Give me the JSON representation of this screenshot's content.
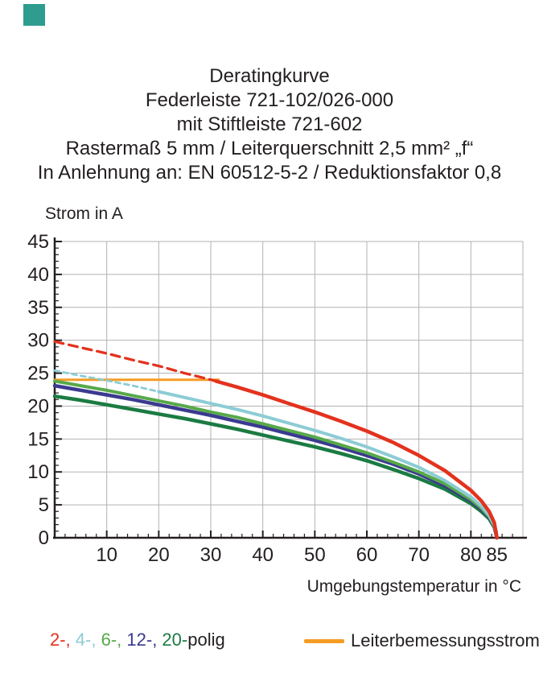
{
  "brand": {
    "square_color": "#2E9C8E"
  },
  "title": {
    "lines": [
      "Deratingkurve",
      "Federleiste 721-102/026-000",
      "mit Stiftleiste 721-602",
      "Rastermaß 5 mm / Leiterquerschnitt 2,5 mm² „f“",
      "In Anlehnung an: EN 60512-5-2 / Reduktionsfaktor 0,8"
    ]
  },
  "chart_data": {
    "type": "line",
    "title": "Deratingkurve",
    "xlabel": "Umgebungstemperatur in °C",
    "ylabel": "Strom in A",
    "xlim": [
      0,
      90
    ],
    "ylim": [
      0,
      45
    ],
    "x_major_ticks": [
      10,
      20,
      30,
      40,
      50,
      60,
      70,
      80,
      85
    ],
    "y_major_ticks": [
      0,
      5,
      10,
      15,
      20,
      25,
      30,
      35,
      40,
      45
    ],
    "x_minor_step": 2,
    "y_minor_step": 1,
    "grid": true,
    "grid_color": "#b2b2b2",
    "axis_color": "#231f20",
    "x": [
      0,
      5,
      10,
      15,
      20,
      25,
      30,
      35,
      40,
      45,
      50,
      55,
      60,
      65,
      70,
      75,
      80,
      82,
      83.5,
      84.5,
      85
    ],
    "series": [
      {
        "name": "2-polig",
        "color": "#E3321E",
        "width": 4.5,
        "dash_until_x": 31,
        "values": [
          29.8,
          28.9,
          28.0,
          27.0,
          26.1,
          25.0,
          24.0,
          22.9,
          21.7,
          20.4,
          19.1,
          17.7,
          16.2,
          14.5,
          12.5,
          10.2,
          7.2,
          5.6,
          4.0,
          2.3,
          0
        ]
      },
      {
        "name": "4-polig",
        "color": "#8CCCD5",
        "width": 4,
        "dash_until_x": 20,
        "values": [
          25.4,
          24.6,
          23.9,
          23.1,
          22.2,
          21.3,
          20.4,
          19.5,
          18.5,
          17.4,
          16.3,
          15.1,
          13.8,
          12.3,
          10.7,
          8.7,
          6.2,
          4.8,
          3.4,
          1.9,
          0
        ]
      },
      {
        "name": "6-polig",
        "color": "#57A949",
        "width": 4,
        "values": [
          23.8,
          23.1,
          22.4,
          21.6,
          20.8,
          20.0,
          19.1,
          18.3,
          17.3,
          16.3,
          15.3,
          14.1,
          12.9,
          11.5,
          10.0,
          8.2,
          5.8,
          4.5,
          3.2,
          1.8,
          0
        ]
      },
      {
        "name": "12-polig",
        "color": "#3A3A90",
        "width": 4.5,
        "values": [
          23.1,
          22.4,
          21.7,
          21.0,
          20.2,
          19.4,
          18.6,
          17.7,
          16.8,
          15.8,
          14.8,
          13.7,
          12.5,
          11.2,
          9.7,
          7.9,
          5.6,
          4.3,
          3.1,
          1.8,
          0
        ]
      },
      {
        "name": "20-polig",
        "color": "#1B7B42",
        "width": 4.5,
        "values": [
          21.5,
          20.9,
          20.2,
          19.5,
          18.8,
          18.1,
          17.3,
          16.5,
          15.6,
          14.7,
          13.8,
          12.8,
          11.7,
          10.4,
          9.0,
          7.4,
          5.2,
          4.0,
          2.9,
          1.6,
          0
        ]
      },
      {
        "name": "Leiterbemessungsstrom",
        "color": "#F59C23",
        "width": 3,
        "x": [
          0,
          31.5
        ],
        "values": [
          24,
          24
        ]
      }
    ]
  },
  "legend": {
    "poles": [
      {
        "label": "2-",
        "color": "#E3321E"
      },
      {
        "label": "4-",
        "color": "#8CCCD5"
      },
      {
        "label": "6-",
        "color": "#57A949"
      },
      {
        "label": "12-",
        "color": "#3A3A90"
      },
      {
        "label": "20-",
        "color": "#1B7B42"
      }
    ],
    "separator": ", ",
    "suffix": "polig",
    "suffix_color": "#231f20",
    "rated_current_label": "Leiterbemessungsstrom",
    "rated_current_color": "#F59C23"
  }
}
